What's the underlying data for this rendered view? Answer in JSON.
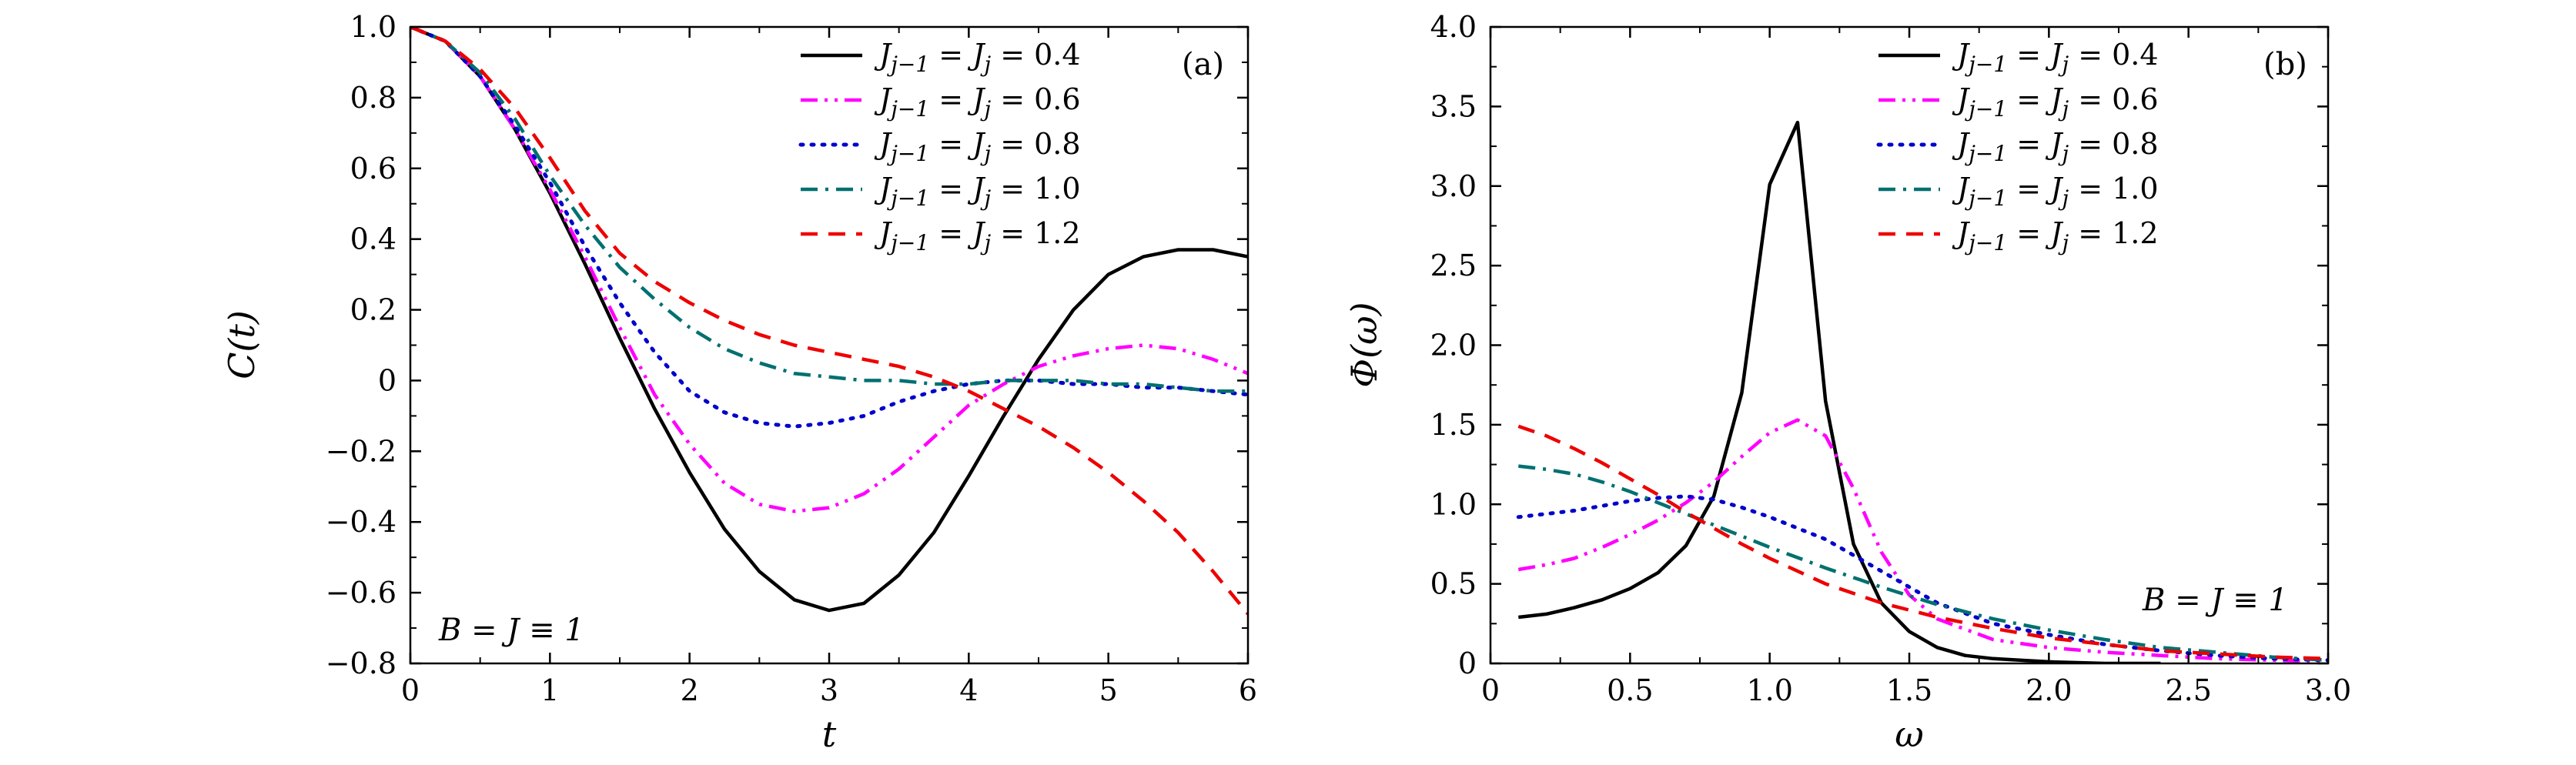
{
  "chart_data": [
    {
      "type": "line",
      "panel_tag": "(a)",
      "xlabel": "t",
      "ylabel": "C(t)",
      "xlim": [
        0,
        6
      ],
      "ylim": [
        -0.8,
        1.0
      ],
      "x_ticks": [
        0,
        1,
        2,
        3,
        4,
        5,
        6
      ],
      "x_tick_labels": [
        "0",
        "1",
        "2",
        "3",
        "4",
        "5",
        "6"
      ],
      "y_ticks": [
        -0.8,
        -0.6,
        -0.4,
        -0.2,
        0,
        0.2,
        0.4,
        0.6,
        0.8,
        1.0
      ],
      "y_tick_labels": [
        "−0.8",
        "−0.6",
        "−0.4",
        "−0.2",
        "0",
        "0.2",
        "0.4",
        "0.6",
        "0.8",
        "1.0"
      ],
      "annotation": "B = J ≡ 1",
      "legend_position": "top-right",
      "series": [
        {
          "name": "J_{j−1} = J_j = 0.4",
          "legend": "J j−1 = J j = 0.4",
          "color": "#000000",
          "dash": "solid",
          "x": [
            0,
            0.25,
            0.5,
            0.75,
            1,
            1.25,
            1.5,
            1.75,
            2,
            2.25,
            2.5,
            2.75,
            3,
            3.25,
            3.5,
            3.75,
            4,
            4.25,
            4.5,
            4.75,
            5,
            5.25,
            5.5,
            5.75,
            6
          ],
          "y": [
            1.0,
            0.96,
            0.86,
            0.71,
            0.53,
            0.33,
            0.12,
            -0.08,
            -0.26,
            -0.42,
            -0.54,
            -0.62,
            -0.65,
            -0.63,
            -0.55,
            -0.43,
            -0.27,
            -0.1,
            0.06,
            0.2,
            0.3,
            0.35,
            0.37,
            0.37,
            0.35
          ]
        },
        {
          "name": "J_{j−1} = J_j = 0.6",
          "legend": "J j−1 = J j = 0.6",
          "color": "#ff00ff",
          "dash": "dashdotdot",
          "x": [
            0,
            0.25,
            0.5,
            0.75,
            1,
            1.25,
            1.5,
            1.75,
            2,
            2.25,
            2.5,
            2.75,
            3,
            3.25,
            3.5,
            3.75,
            4,
            4.25,
            4.5,
            4.75,
            5,
            5.25,
            5.5,
            5.75,
            6
          ],
          "y": [
            1.0,
            0.96,
            0.86,
            0.71,
            0.54,
            0.35,
            0.15,
            -0.04,
            -0.18,
            -0.29,
            -0.35,
            -0.37,
            -0.36,
            -0.32,
            -0.25,
            -0.16,
            -0.07,
            -0.01,
            0.04,
            0.07,
            0.09,
            0.1,
            0.09,
            0.06,
            0.02
          ]
        },
        {
          "name": "J_{j−1} = J_j = 0.8",
          "legend": "J j−1 = J j = 0.8",
          "color": "#0000cc",
          "dash": "dotted",
          "x": [
            0,
            0.25,
            0.5,
            0.75,
            1,
            1.25,
            1.5,
            1.75,
            2,
            2.25,
            2.5,
            2.75,
            3,
            3.25,
            3.5,
            3.75,
            4,
            4.25,
            4.5,
            4.75,
            5,
            5.25,
            5.5,
            5.75,
            6
          ],
          "y": [
            1.0,
            0.96,
            0.86,
            0.72,
            0.56,
            0.38,
            0.22,
            0.08,
            -0.03,
            -0.09,
            -0.12,
            -0.13,
            -0.12,
            -0.1,
            -0.06,
            -0.03,
            -0.01,
            0.0,
            0.0,
            -0.01,
            -0.01,
            -0.02,
            -0.02,
            -0.03,
            -0.04
          ]
        },
        {
          "name": "J_{j−1} = J_j = 1.0",
          "legend": "J j−1 = J j = 1.0",
          "color": "#007070",
          "dash": "dashdot",
          "x": [
            0,
            0.25,
            0.5,
            0.75,
            1,
            1.25,
            1.5,
            1.75,
            2,
            2.25,
            2.5,
            2.75,
            3,
            3.25,
            3.5,
            3.75,
            4,
            4.25,
            4.5,
            4.75,
            5,
            5.25,
            5.5,
            5.75,
            6
          ],
          "y": [
            1.0,
            0.96,
            0.87,
            0.74,
            0.58,
            0.44,
            0.32,
            0.23,
            0.15,
            0.09,
            0.05,
            0.02,
            0.01,
            0.0,
            0.0,
            -0.01,
            -0.01,
            0.0,
            0.0,
            0.0,
            -0.01,
            -0.01,
            -0.02,
            -0.03,
            -0.03
          ]
        },
        {
          "name": "J_{j−1} = J_j = 1.2",
          "legend": "J j−1 = J j = 1.2",
          "color": "#ee0000",
          "dash": "dashed",
          "x": [
            0,
            0.25,
            0.5,
            0.75,
            1,
            1.25,
            1.5,
            1.75,
            2,
            2.25,
            2.5,
            2.75,
            3,
            3.25,
            3.5,
            3.75,
            4,
            4.25,
            4.5,
            4.75,
            5,
            5.25,
            5.5,
            5.75,
            6
          ],
          "y": [
            1.0,
            0.96,
            0.88,
            0.77,
            0.63,
            0.48,
            0.36,
            0.28,
            0.22,
            0.17,
            0.13,
            0.1,
            0.08,
            0.06,
            0.04,
            0.01,
            -0.03,
            -0.08,
            -0.13,
            -0.19,
            -0.26,
            -0.34,
            -0.43,
            -0.54,
            -0.66
          ]
        }
      ]
    },
    {
      "type": "line",
      "panel_tag": "(b)",
      "xlabel": "ω",
      "ylabel": "Φ(ω)",
      "xlim": [
        0,
        3.0
      ],
      "ylim": [
        0,
        4.0
      ],
      "x_ticks": [
        0,
        0.5,
        1.0,
        1.5,
        2.0,
        2.5,
        3.0
      ],
      "x_tick_labels": [
        "0",
        "0.5",
        "1.0",
        "1.5",
        "2.0",
        "2.5",
        "3.0"
      ],
      "y_ticks": [
        0,
        0.5,
        1.0,
        1.5,
        2.0,
        2.5,
        3.0,
        3.5,
        4.0
      ],
      "y_tick_labels": [
        "0",
        "0.5",
        "1.0",
        "1.5",
        "2.0",
        "2.5",
        "3.0",
        "3.5",
        "4.0"
      ],
      "annotation": "B = J ≡ 1",
      "legend_position": "top-right",
      "series": [
        {
          "name": "J_{j−1} = J_j = 0.4",
          "legend": "J j−1 = J j = 0.4",
          "color": "#000000",
          "dash": "solid",
          "x": [
            0.1,
            0.2,
            0.3,
            0.4,
            0.5,
            0.6,
            0.7,
            0.8,
            0.9,
            1.0,
            1.1,
            1.2,
            1.3,
            1.4,
            1.5,
            1.6,
            1.7,
            1.8,
            1.9,
            2.0,
            2.2,
            2.4
          ],
          "y": [
            0.29,
            0.31,
            0.35,
            0.4,
            0.47,
            0.57,
            0.74,
            1.05,
            1.7,
            3.01,
            3.4,
            1.65,
            0.75,
            0.38,
            0.2,
            0.1,
            0.05,
            0.03,
            0.02,
            0.01,
            0.0,
            0.0
          ]
        },
        {
          "name": "J_{j−1} = J_j = 0.6",
          "legend": "J j−1 = J j = 0.6",
          "color": "#ff00ff",
          "dash": "dashdotdot",
          "x": [
            0.1,
            0.2,
            0.3,
            0.4,
            0.5,
            0.6,
            0.7,
            0.8,
            0.9,
            1.0,
            1.1,
            1.2,
            1.3,
            1.4,
            1.5,
            1.6,
            1.8,
            2.0,
            2.2,
            2.4,
            2.6,
            2.8,
            3.0
          ],
          "y": [
            0.59,
            0.62,
            0.66,
            0.73,
            0.81,
            0.9,
            1.01,
            1.14,
            1.3,
            1.45,
            1.53,
            1.43,
            1.1,
            0.7,
            0.43,
            0.28,
            0.15,
            0.1,
            0.07,
            0.05,
            0.03,
            0.02,
            0.01
          ]
        },
        {
          "name": "J_{j−1} = J_j = 0.8",
          "legend": "J j−1 = J j = 0.8",
          "color": "#0000cc",
          "dash": "dotted",
          "x": [
            0.1,
            0.2,
            0.3,
            0.4,
            0.5,
            0.6,
            0.7,
            0.8,
            0.9,
            1.0,
            1.1,
            1.2,
            1.3,
            1.4,
            1.5,
            1.6,
            1.8,
            2.0,
            2.2,
            2.4,
            2.6,
            2.8,
            3.0
          ],
          "y": [
            0.92,
            0.94,
            0.96,
            0.99,
            1.02,
            1.04,
            1.05,
            1.03,
            0.98,
            0.92,
            0.85,
            0.78,
            0.68,
            0.58,
            0.48,
            0.38,
            0.25,
            0.18,
            0.12,
            0.08,
            0.05,
            0.03,
            0.02
          ]
        },
        {
          "name": "J_{j−1} = J_j = 1.0",
          "legend": "J j−1 = J j = 1.0",
          "color": "#007070",
          "dash": "dashdot",
          "x": [
            0.1,
            0.2,
            0.3,
            0.4,
            0.5,
            0.6,
            0.7,
            0.8,
            0.9,
            1.0,
            1.2,
            1.4,
            1.6,
            1.8,
            2.0,
            2.2,
            2.4,
            2.6,
            2.8,
            3.0
          ],
          "y": [
            1.24,
            1.22,
            1.19,
            1.14,
            1.08,
            1.01,
            0.94,
            0.87,
            0.8,
            0.73,
            0.6,
            0.48,
            0.37,
            0.28,
            0.21,
            0.15,
            0.1,
            0.07,
            0.04,
            0.02
          ]
        },
        {
          "name": "J_{j−1} = J_j = 1.2",
          "legend": "J j−1 = J j = 1.2",
          "color": "#ee0000",
          "dash": "dashed",
          "x": [
            0.1,
            0.2,
            0.3,
            0.4,
            0.5,
            0.6,
            0.7,
            0.8,
            0.9,
            1.0,
            1.2,
            1.4,
            1.6,
            1.8,
            2.0,
            2.2,
            2.4,
            2.6,
            2.8,
            3.0
          ],
          "y": [
            1.49,
            1.43,
            1.35,
            1.26,
            1.16,
            1.06,
            0.95,
            0.85,
            0.75,
            0.66,
            0.5,
            0.38,
            0.29,
            0.22,
            0.16,
            0.12,
            0.08,
            0.06,
            0.04,
            0.03
          ]
        }
      ]
    }
  ]
}
